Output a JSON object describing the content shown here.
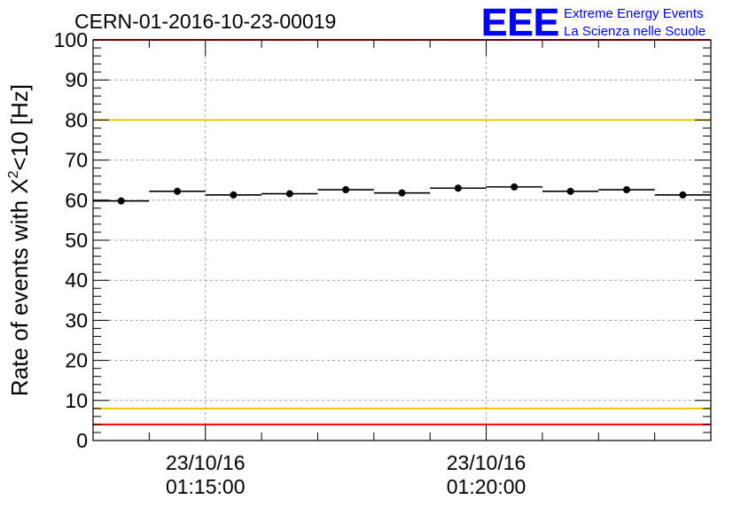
{
  "chart_data": {
    "type": "scatter",
    "title": "CERN-01-2016-10-23-00019",
    "ylabel": {
      "prefix": "Rate of events with ",
      "chi": "X",
      "chi_sup": "2",
      "suffix": "<10 [Hz]"
    },
    "ylim": [
      0,
      100
    ],
    "y_ticks": [
      "0",
      "10",
      "20",
      "30",
      "40",
      "50",
      "60",
      "70",
      "80",
      "90",
      "100"
    ],
    "xlim": [
      "23/10/16 01:13:00",
      "23/10/16 01:24:00"
    ],
    "x_tick_labels": [
      {
        "at": "01:15:00",
        "date": "23/10/16",
        "time": "01:15:00"
      },
      {
        "at": "01:20:00",
        "date": "23/10/16",
        "time": "01:20:00"
      }
    ],
    "grid": true,
    "bin_width_seconds": 60,
    "reference_lines": [
      {
        "value": 100,
        "color": "#ff0000"
      },
      {
        "value": 80,
        "color": "#e8c800"
      },
      {
        "value": 8,
        "color": "#e8c800"
      },
      {
        "value": 4,
        "color": "#ff0000"
      }
    ],
    "series": [
      {
        "x": [
          "01:13:00",
          "01:14:00",
          "01:15:00",
          "01:16:00",
          "01:17:00",
          "01:18:00",
          "01:19:00",
          "01:20:00",
          "01:21:00",
          "01:22:00",
          "01:23:00"
        ],
        "y": [
          59.8,
          62.2,
          61.3,
          61.6,
          62.6,
          61.8,
          63.0,
          63.3,
          62.2,
          62.6,
          61.3
        ],
        "color": "#000000"
      }
    ]
  },
  "logo": {
    "text": "EEE",
    "line1": "Extreme Energy Events",
    "line2": "La Scienza nelle Scuole",
    "color": "#0000ff"
  }
}
